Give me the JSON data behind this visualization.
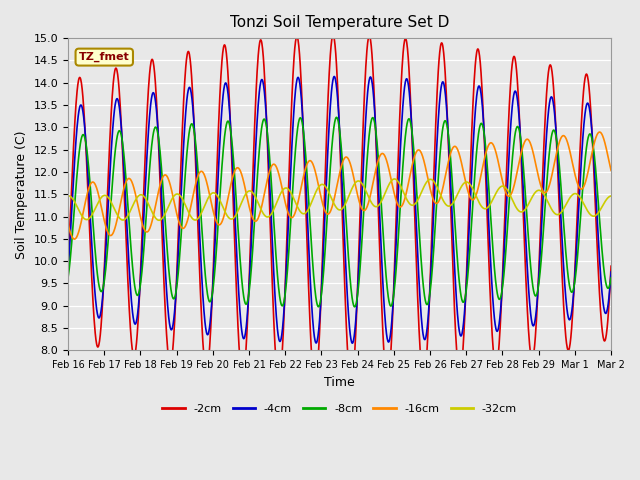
{
  "title": "Tonzi Soil Temperature Set D",
  "xlabel": "Time",
  "ylabel": "Soil Temperature (C)",
  "ylim": [
    8.0,
    15.0
  ],
  "yticks": [
    8.0,
    8.5,
    9.0,
    9.5,
    10.0,
    10.5,
    11.0,
    11.5,
    12.0,
    12.5,
    13.0,
    13.5,
    14.0,
    14.5,
    15.0
  ],
  "xtick_positions": [
    0,
    1,
    2,
    3,
    4,
    5,
    6,
    7,
    8,
    9,
    10,
    11,
    12,
    13,
    14,
    15
  ],
  "xtick_labels": [
    "Feb 16",
    "Feb 17",
    "Feb 18",
    "Feb 19",
    "Feb 20",
    "Feb 21",
    "Feb 22",
    "Feb 23",
    "Feb 24",
    "Feb 25",
    "Feb 26",
    "Feb 27",
    "Feb 28",
    "Feb 29",
    "Mar 1",
    "Mar 2"
  ],
  "legend_labels": [
    "-2cm",
    "-4cm",
    "-8cm",
    "-16cm",
    "-32cm"
  ],
  "legend_colors": [
    "#dd0000",
    "#0000cc",
    "#00aa00",
    "#ff8800",
    "#cccc00"
  ],
  "annotation_text": "TZ_fmet",
  "annotation_bg": "#ffffcc",
  "annotation_border": "#aa8800",
  "days": 15
}
